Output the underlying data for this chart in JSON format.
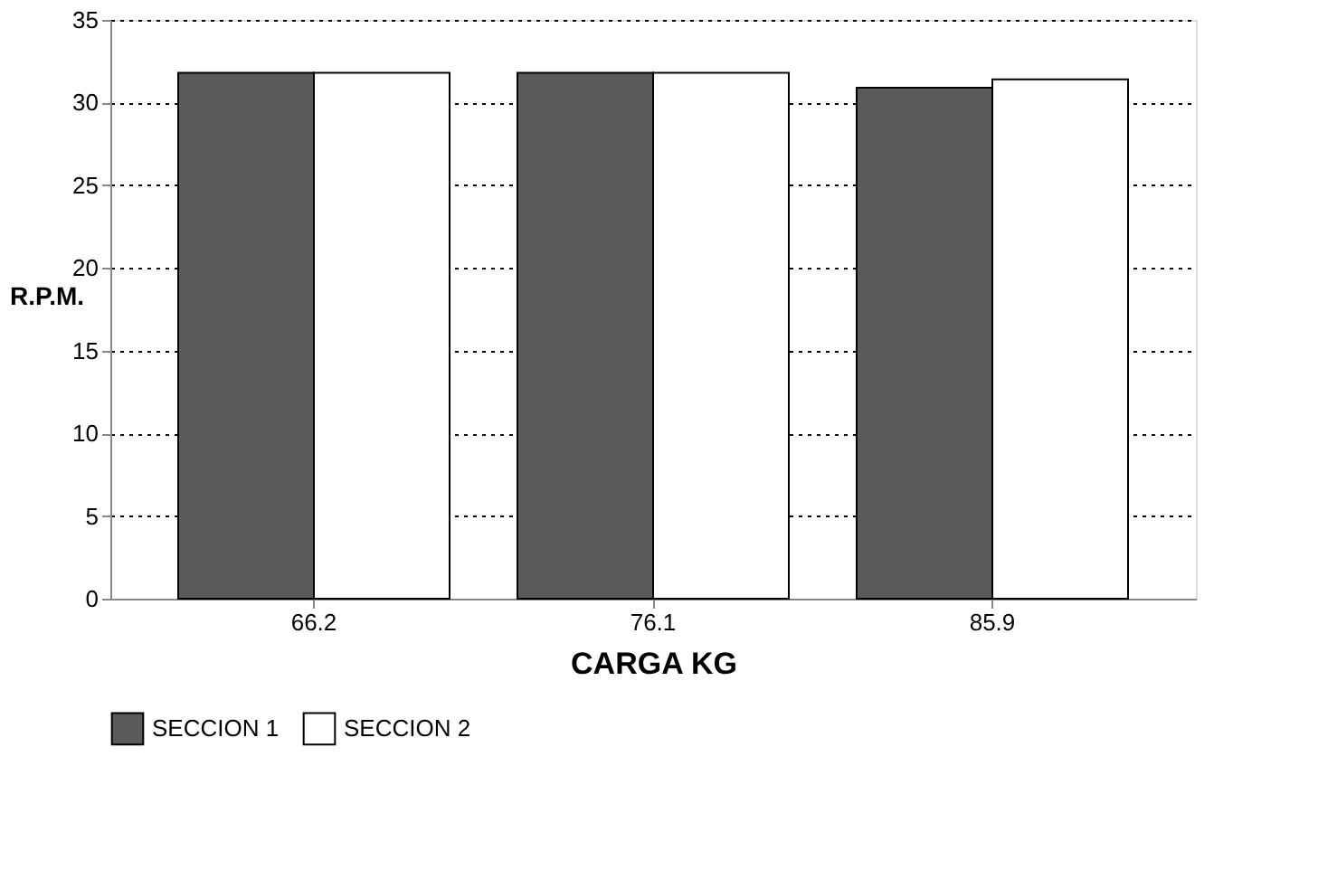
{
  "chart_data": {
    "type": "bar",
    "xlabel": "CARGA KG",
    "ylabel": "R.P.M.",
    "categories": [
      "66.2",
      "76.1",
      "85.9"
    ],
    "series": [
      {
        "name": "SECCION 1",
        "color": "#5a5a5a",
        "values": [
          31.8,
          31.8,
          30.9
        ]
      },
      {
        "name": "SECCION 2",
        "color": "#ffffff",
        "values": [
          31.8,
          31.8,
          31.4
        ]
      }
    ],
    "ylim": [
      0,
      35
    ],
    "yticks": [
      0,
      5,
      10,
      15,
      20,
      25,
      30,
      35
    ],
    "grid": "y",
    "legend": "bottom"
  }
}
